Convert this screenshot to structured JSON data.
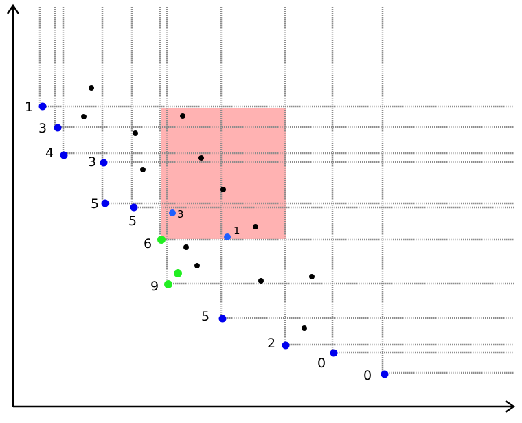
{
  "colors": {
    "region_fill": "#ff7f7f",
    "region_opacity": 0.6,
    "blue": "#0000ee",
    "mid_blue": "#1f5fff",
    "green": "#22ee22",
    "black": "#000000"
  },
  "labels": {
    "b1": "1",
    "b2": "3",
    "b3": "4",
    "b4": "3",
    "b5": "5",
    "b6": "5",
    "b7": "5",
    "b8": "2",
    "b9": "0",
    "b10": "0",
    "q1": "3",
    "q2": "1",
    "g1": "6",
    "g2": "9"
  }
}
